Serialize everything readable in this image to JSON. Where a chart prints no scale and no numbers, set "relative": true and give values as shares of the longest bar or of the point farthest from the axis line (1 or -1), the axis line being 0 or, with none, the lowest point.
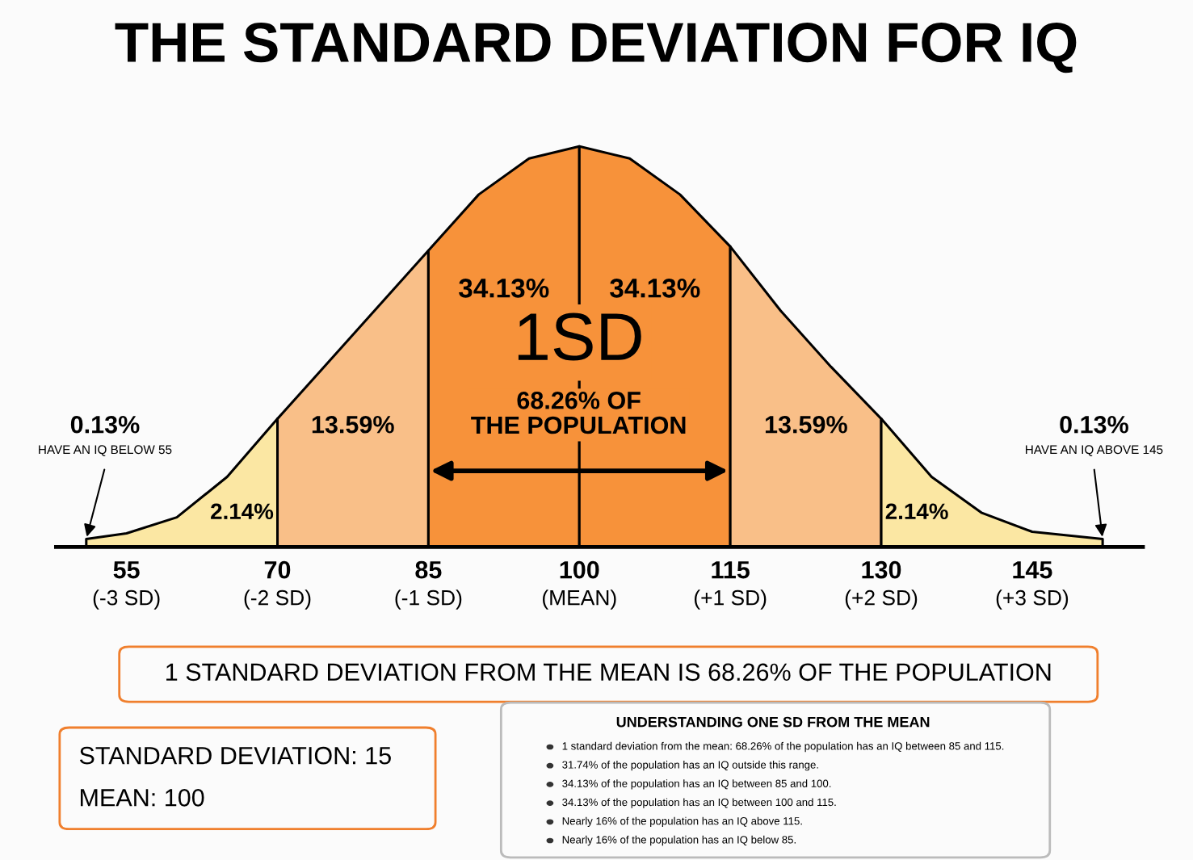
{
  "chart_data": {
    "type": "area",
    "title": "THE STANDARD DEVIATION FOR IQ",
    "relative": true,
    "tick_labels": "x",
    "grid": false,
    "xlim": [
      48,
      156
    ],
    "xticks": [
      55,
      70,
      85,
      100,
      115,
      130,
      145
    ],
    "series": [
      {
        "color": "#fbe7a3",
        "x": [
          51,
          55,
          60,
          65,
          70
        ],
        "values": [
          0.02,
          0.034,
          0.074,
          0.175,
          0.32
        ]
      },
      {
        "color": "#f9bf88",
        "x": [
          70,
          75,
          80,
          85
        ],
        "values": [
          0.32,
          0.46,
          0.6,
          0.74
        ]
      },
      {
        "color": "#f7923a",
        "x": [
          85,
          90,
          95,
          100
        ],
        "values": [
          0.74,
          0.88,
          0.97,
          1
        ]
      },
      {
        "color": "#f7923a",
        "x": [
          100,
          105,
          110,
          115
        ],
        "values": [
          1,
          0.97,
          0.88,
          0.75
        ]
      },
      {
        "color": "#f9bf88",
        "x": [
          115,
          120,
          125,
          130
        ],
        "values": [
          0.75,
          0.59,
          0.45,
          0.32
        ]
      },
      {
        "color": "#fbe7a3",
        "x": [
          130,
          135,
          140,
          145,
          152
        ],
        "values": [
          0.32,
          0.175,
          0.085,
          0.038,
          0.02
        ]
      }
    ],
    "annotations": [
      "34.13%",
      "34.13%",
      "1SD",
      "68.26% OF\nTHE POPULATION",
      "13.59%",
      "13.59%",
      "2.14%",
      "2.14%",
      "0.13%",
      "HAVE AN IQ BELOW 55",
      "0.13%",
      "HAVE AN IQ ABOVE 145",
      "(-3 SD)",
      "(-2 SD)",
      "(-1 SD)",
      "(MEAN)",
      "(+1 SD)",
      "(+2 SD)",
      "(+3 SD)",
      "1 STANDARD DEVIATION FROM THE MEAN IS 68.26% OF THE POPULATION",
      "STANDARD DEVIATION: 15",
      "MEAN: 100",
      "UNDERSTANDING ONE SD FROM THE MEAN",
      "1 standard deviation from the mean: 68.26% of the population has an IQ between 85 and 115.",
      "31.74% of the population has an IQ outside this range.",
      "34.13% of the population has an IQ between 85 and 100.",
      "34.13% of the population has an IQ between 100 and 115.",
      "Nearly 16% of the population has an IQ above 115.",
      "Nearly 16% of the population has an IQ below 85."
    ]
  }
}
